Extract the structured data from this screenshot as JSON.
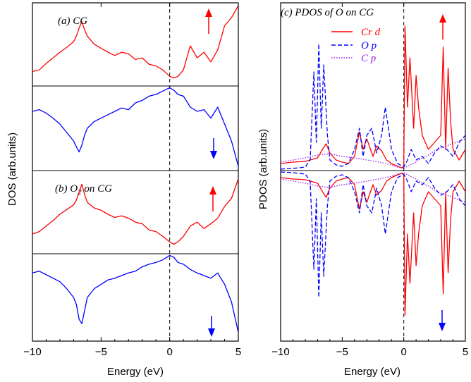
{
  "chart_data": [
    {
      "type": "line",
      "panel": "(a)",
      "title": "(a) CG",
      "xlabel": "Energy (eV)",
      "ylabel": "DOS (arb.units)",
      "xlim": [
        -10,
        5
      ],
      "xticks": [
        "−10",
        "−5",
        "0",
        "5"
      ],
      "fermi_level": 0,
      "colors": {
        "up": "#ff0000",
        "down": "#0000ff"
      },
      "series": [
        {
          "spin": "up",
          "x": [
            -10,
            -9.5,
            -9,
            -8.5,
            -8,
            -7.5,
            -7,
            -6.8,
            -6.6,
            -6.4,
            -6.2,
            -6,
            -5.5,
            -5,
            -4.5,
            -4,
            -3.5,
            -3,
            -2.5,
            -2,
            -1.5,
            -1,
            -0.5,
            0,
            0.3,
            0.6,
            1,
            1.5,
            2,
            2.5,
            3,
            3.5,
            4,
            4.5,
            5
          ],
          "values": [
            0.18,
            0.2,
            0.28,
            0.35,
            0.42,
            0.48,
            0.55,
            0.62,
            0.72,
            0.8,
            0.7,
            0.62,
            0.52,
            0.47,
            0.42,
            0.38,
            0.42,
            0.4,
            0.33,
            0.35,
            0.27,
            0.25,
            0.2,
            0.12,
            0.1,
            0.12,
            0.2,
            0.5,
            0.35,
            0.42,
            0.3,
            0.45,
            0.75,
            0.85,
            1.0
          ]
        },
        {
          "spin": "down",
          "x": [
            -10,
            -9.5,
            -9,
            -8.5,
            -8,
            -7.5,
            -7,
            -6.8,
            -6.6,
            -6.4,
            -6.2,
            -6,
            -5.5,
            -5,
            -4.5,
            -4,
            -3.5,
            -3,
            -2.5,
            -2,
            -1.5,
            -1,
            -0.5,
            0,
            0.3,
            0.6,
            1,
            1.5,
            2,
            2.5,
            3,
            3.5,
            4,
            4.5,
            5
          ],
          "values": [
            0.7,
            0.72,
            0.68,
            0.62,
            0.55,
            0.45,
            0.35,
            0.28,
            0.22,
            0.3,
            0.42,
            0.5,
            0.58,
            0.62,
            0.66,
            0.7,
            0.74,
            0.72,
            0.8,
            0.83,
            0.88,
            0.9,
            0.94,
            0.98,
            0.95,
            0.9,
            0.88,
            0.75,
            0.7,
            0.72,
            0.62,
            0.75,
            0.55,
            0.35,
            0.05
          ]
        }
      ]
    },
    {
      "type": "line",
      "panel": "(b)",
      "title_main": "(b) O",
      "title_sub": "2",
      "title_rest": " on CG",
      "xlabel": "Energy (eV)",
      "xlim": [
        -10,
        5
      ],
      "fermi_level": 0,
      "series": [
        {
          "spin": "up",
          "x": [
            -10,
            -9.5,
            -9,
            -8.5,
            -8,
            -7.5,
            -7,
            -6.8,
            -6.6,
            -6.4,
            -6.2,
            -6,
            -5.5,
            -5,
            -4.5,
            -4,
            -3.5,
            -3,
            -2.5,
            -2,
            -1.5,
            -1,
            -0.5,
            0,
            0.3,
            0.6,
            1,
            1.5,
            2,
            2.5,
            3,
            3.5,
            4,
            4.5,
            5
          ],
          "values": [
            0.25,
            0.28,
            0.35,
            0.42,
            0.5,
            0.56,
            0.62,
            0.68,
            0.78,
            0.88,
            0.75,
            0.65,
            0.58,
            0.55,
            0.5,
            0.46,
            0.48,
            0.45,
            0.4,
            0.38,
            0.3,
            0.28,
            0.22,
            0.15,
            0.12,
            0.15,
            0.22,
            0.35,
            0.4,
            0.32,
            0.38,
            0.45,
            0.6,
            0.7,
            0.95
          ]
        },
        {
          "spin": "down",
          "x": [
            -10,
            -9.5,
            -9,
            -8.5,
            -8,
            -7.5,
            -7,
            -6.8,
            -6.6,
            -6.4,
            -6.2,
            -6,
            -5.5,
            -5,
            -4.5,
            -4,
            -3.5,
            -3,
            -2.5,
            -2,
            -1.5,
            -1,
            -0.5,
            0,
            0.3,
            0.6,
            1,
            1.5,
            2,
            2.5,
            3,
            3.5,
            4,
            4.5,
            5
          ],
          "values": [
            0.78,
            0.8,
            0.76,
            0.72,
            0.68,
            0.6,
            0.5,
            0.42,
            0.25,
            0.2,
            0.35,
            0.5,
            0.6,
            0.65,
            0.7,
            0.72,
            0.75,
            0.78,
            0.8,
            0.85,
            0.88,
            0.9,
            0.93,
            0.98,
            0.96,
            0.9,
            0.88,
            0.82,
            0.78,
            0.75,
            0.72,
            0.78,
            0.65,
            0.45,
            0.1
          ]
        }
      ]
    },
    {
      "type": "line",
      "panel": "(c)",
      "title": "(c) PDOS of O on CG",
      "xlabel": "Energy (eV)",
      "ylabel": "PDOS (arb.units)",
      "xlim": [
        -10,
        5
      ],
      "xticks": [
        "−10",
        "−5",
        "0",
        "5"
      ],
      "fermi_level": 0,
      "series": [
        {
          "name": "Cr d",
          "color": "#ff0000",
          "style": "solid",
          "x": [
            -10,
            -9,
            -8,
            -7,
            -6.6,
            -6.3,
            -6,
            -5.5,
            -5,
            -4.5,
            -4,
            -3.6,
            -3.3,
            -3,
            -2.5,
            -2.2,
            -1.8,
            -1.4,
            -1,
            -0.5,
            -0.2,
            0,
            0.1,
            0.3,
            0.5,
            0.8,
            1,
            1.2,
            1.5,
            2,
            2.5,
            3,
            3.2,
            3.4,
            3.6,
            3.8,
            4,
            4.5,
            5
          ],
          "values": [
            0.1,
            0.12,
            0.13,
            0.18,
            0.3,
            0.38,
            0.25,
            0.15,
            0.12,
            0.1,
            0.2,
            0.55,
            0.3,
            0.45,
            0.2,
            0.35,
            0.28,
            0.15,
            0.1,
            0.06,
            0.04,
            0.05,
            2.05,
            0.9,
            1.6,
            0.6,
            1.35,
            0.9,
            0.5,
            0.3,
            0.4,
            0.5,
            1.75,
            0.3,
            1.45,
            0.7,
            0.3,
            0.15,
            0.3
          ]
        },
        {
          "name": "O p",
          "color": "#0000ff",
          "style": "dashed",
          "x": [
            -10,
            -9,
            -8,
            -7.6,
            -7.3,
            -7.1,
            -6.9,
            -6.7,
            -6.5,
            -6.2,
            -6,
            -5.5,
            -5,
            -4.5,
            -4,
            -3.6,
            -3.3,
            -3,
            -2.6,
            -2.2,
            -1.8,
            -1.5,
            -1,
            -0.5,
            0,
            0.3,
            0.6,
            1,
            1.5,
            2,
            2.5,
            3,
            3.5,
            4,
            4.5,
            5
          ],
          "values": [
            0.02,
            0.03,
            0.05,
            0.15,
            1.4,
            0.4,
            1.8,
            0.6,
            1.5,
            0.5,
            0.15,
            0.08,
            0.06,
            0.1,
            0.3,
            0.6,
            0.2,
            0.5,
            0.6,
            0.25,
            0.5,
            0.9,
            0.3,
            0.1,
            0.05,
            0.15,
            0.3,
            0.15,
            0.2,
            0.1,
            0.25,
            0.35,
            0.3,
            0.2,
            0.4,
            0.5
          ]
        },
        {
          "name": "C p",
          "color": "#a020f0",
          "style": "dotted",
          "x": [
            -10,
            -9,
            -8,
            -7,
            -6,
            -5,
            -4,
            -3,
            -2,
            -1,
            -0.5,
            0,
            0.5,
            1,
            1.5,
            2,
            2.5,
            3,
            3.5,
            4,
            4.5,
            5
          ],
          "values": [
            0.12,
            0.15,
            0.18,
            0.22,
            0.24,
            0.2,
            0.18,
            0.15,
            0.12,
            0.08,
            0.05,
            0.03,
            0.08,
            0.12,
            0.18,
            0.22,
            0.28,
            0.32,
            0.35,
            0.38,
            0.42,
            0.45
          ]
        }
      ]
    }
  ],
  "labels": {
    "xlabel": "Energy (eV)",
    "dos_ylabel": "DOS (arb.units)",
    "pdos_ylabel": "PDOS (arb.units)",
    "panel_a": "(a) CG",
    "panel_b_main": "(b) O",
    "panel_b_sub": "2",
    "panel_b_rest": " on CG",
    "panel_c": "(c) PDOS of O on CG",
    "legend_cr": "Cr d",
    "legend_o": "O p",
    "legend_c": "C p",
    "ticks": [
      "−10",
      "−5",
      "0",
      "5"
    ]
  }
}
